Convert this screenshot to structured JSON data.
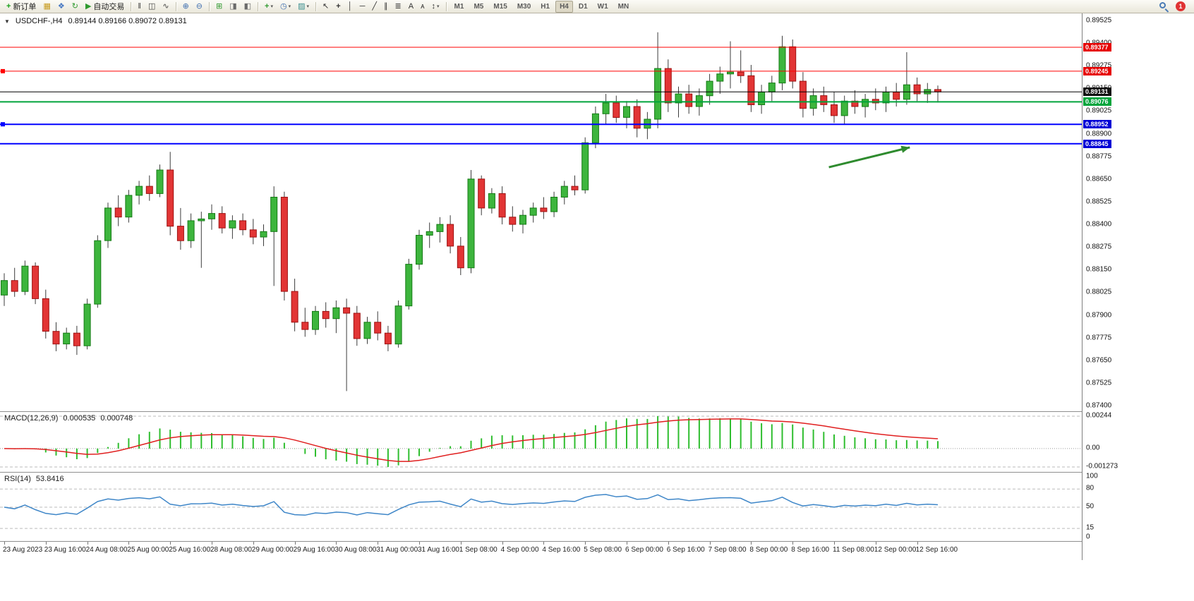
{
  "toolbar": {
    "caret_glyph": "▾",
    "notification_count": "1",
    "groups": [
      {
        "buttons": [
          {
            "name": "new-order-button",
            "glyph": "+",
            "glyph_color": "#18a018",
            "bold": true,
            "label": "新订单"
          },
          {
            "name": "new-chart-button",
            "glyph": "▦",
            "glyph_color": "#c79a1d"
          },
          {
            "name": "profiles-button",
            "glyph": "❖",
            "glyph_color": "#4576c2"
          },
          {
            "name": "refresh-button",
            "glyph": "↻",
            "glyph_color": "#2f9a2f"
          },
          {
            "name": "auto-trading-button",
            "glyph": "▶",
            "glyph_color": "#2f9a2f",
            "label": "自动交易"
          }
        ]
      },
      {
        "buttons": [
          {
            "name": "bar-chart-button",
            "glyph": "‖",
            "glyph_color": "#444"
          },
          {
            "name": "candlestick-chart-button",
            "glyph": "◫",
            "glyph_color": "#444"
          },
          {
            "name": "line-chart-button",
            "glyph": "∿",
            "glyph_color": "#444"
          }
        ]
      },
      {
        "buttons": [
          {
            "name": "zoom-in-button",
            "glyph": "⊕",
            "glyph_color": "#3f6fb0"
          },
          {
            "name": "zoom-out-button",
            "glyph": "⊖",
            "glyph_color": "#3f6fb0"
          }
        ]
      },
      {
        "buttons": [
          {
            "name": "tile-windows-button",
            "glyph": "⊞",
            "glyph_color": "#2f9a2f"
          },
          {
            "name": "auto-scroll-button",
            "glyph": "◨",
            "glyph_color": "#6a6a6a"
          },
          {
            "name": "chart-shift-button",
            "glyph": "◧",
            "glyph_color": "#6a6a6a"
          }
        ]
      },
      {
        "buttons": [
          {
            "name": "indicators-button",
            "glyph": "+",
            "glyph_color": "#2f9a2f",
            "bold": true,
            "caret": true
          },
          {
            "name": "periods-button",
            "glyph": "◷",
            "glyph_color": "#3f6fb0",
            "caret": true
          },
          {
            "name": "templates-button",
            "glyph": "▨",
            "glyph_color": "#3a8f8f",
            "caret": true
          }
        ]
      },
      {
        "buttons": [
          {
            "name": "cursor-button",
            "glyph": "↖",
            "glyph_color": "#333"
          },
          {
            "name": "crosshair-button",
            "glyph": "+",
            "glyph_color": "#333",
            "bold": true
          },
          {
            "name": "vertical-line-button",
            "glyph": "│",
            "glyph_color": "#333"
          },
          {
            "name": "horizontal-line-button",
            "glyph": "─",
            "glyph_color": "#333"
          },
          {
            "name": "trendline-button",
            "glyph": "╱",
            "glyph_color": "#333"
          },
          {
            "name": "channel-button",
            "glyph": "∥",
            "glyph_color": "#333"
          },
          {
            "name": "fibonacci-button",
            "glyph": "≣",
            "glyph_color": "#333"
          },
          {
            "name": "text-button",
            "glyph": "A",
            "glyph_color": "#333"
          },
          {
            "name": "label-button",
            "glyph": "ᴀ",
            "glyph_color": "#333"
          },
          {
            "name": "arrows-button",
            "glyph": "↕",
            "glyph_color": "#333",
            "caret": true
          }
        ]
      },
      {
        "buttons": [
          {
            "name": "timeframe-m1-button",
            "text": "M1"
          },
          {
            "name": "timeframe-m5-button",
            "text": "M5"
          },
          {
            "name": "timeframe-m15-button",
            "text": "M15"
          },
          {
            "name": "timeframe-m30-button",
            "text": "M30"
          },
          {
            "name": "timeframe-h1-button",
            "text": "H1"
          },
          {
            "name": "timeframe-h4-button",
            "text": "H4",
            "pressed": true
          },
          {
            "name": "timeframe-d1-button",
            "text": "D1"
          },
          {
            "name": "timeframe-w1-button",
            "text": "W1"
          },
          {
            "name": "timeframe-mn-button",
            "text": "MN"
          }
        ]
      }
    ]
  },
  "chart": {
    "collapse_glyph": "▼",
    "symbol": "USDCHF-,H4",
    "ohlc": "0.89144 0.89166 0.89072 0.89131",
    "candle_colors": {
      "up_fill": "#3db53d",
      "up_stroke": "#157a15",
      "down_fill": "#e23535",
      "down_stroke": "#9e1212"
    },
    "wick_color": "#3c3c3c",
    "price_axis_ticks": [
      "0.89525",
      "0.89400",
      "0.89275",
      "0.89150",
      "0.89025",
      "0.88900",
      "0.88775",
      "0.88650",
      "0.88525",
      "0.88400",
      "0.88275",
      "0.88150",
      "0.88025",
      "0.87900",
      "0.87775",
      "0.87650",
      "0.87525",
      "0.87400"
    ],
    "overlay_lines": [
      {
        "name": "resistance-line-1",
        "price": 0.89377,
        "color": "#ff0000",
        "width": 1,
        "badge": "0.89377",
        "badge_bg": "#e60000"
      },
      {
        "name": "resistance-line-2",
        "price": 0.89245,
        "color": "#ff0000",
        "width": 1,
        "badge": "0.89245",
        "badge_bg": "#e60000",
        "left_marker": true
      },
      {
        "name": "bid-price-line",
        "price": 0.89131,
        "color": "#000000",
        "width": 1,
        "badge": "0.89131",
        "badge_bg": "#111111"
      },
      {
        "name": "support-line-green",
        "price": 0.89076,
        "color": "#00a43b",
        "width": 2,
        "badge": "0.89076",
        "badge_bg": "#00a43b"
      },
      {
        "name": "support-line-1",
        "price": 0.88952,
        "color": "#0000ff",
        "width": 2,
        "badge": "0.88952",
        "badge_bg": "#0000d6",
        "left_marker": true
      },
      {
        "name": "support-line-2",
        "price": 0.88845,
        "color": "#0000ff",
        "width": 2,
        "badge": "0.88845",
        "badge_bg": "#0000d6"
      }
    ],
    "arrow": {
      "from": [
        79.5,
        0.88715
      ],
      "to": [
        87.3,
        0.88825
      ],
      "color": "#2e8b2e"
    }
  },
  "chart_data": {
    "type": "candlestick",
    "symbol": "USDCHF",
    "timeframe": "H4",
    "price_min": 0.874,
    "price_max": 0.89525,
    "bars_per_label": 4,
    "time_labels": [
      "23 Aug 2023",
      "23 Aug 16:00",
      "24 Aug 08:00",
      "25 Aug 00:00",
      "25 Aug 16:00",
      "28 Aug 08:00",
      "29 Aug 00:00",
      "29 Aug 16:00",
      "30 Aug 08:00",
      "31 Aug 00:00",
      "31 Aug 16:00",
      "1 Sep 08:00",
      "4 Sep 00:00",
      "4 Sep 16:00",
      "5 Sep 08:00",
      "6 Sep 00:00",
      "6 Sep 16:00",
      "7 Sep 08:00",
      "8 Sep 00:00",
      "8 Sep 16:00",
      "11 Sep 08:00",
      "12 Sep 00:00",
      "12 Sep 16:00"
    ],
    "candles": [
      [
        0.8801,
        0.8813,
        0.8795,
        0.8809
      ],
      [
        0.8809,
        0.8816,
        0.88,
        0.8803
      ],
      [
        0.8803,
        0.882,
        0.8801,
        0.8817
      ],
      [
        0.8817,
        0.8819,
        0.8796,
        0.8799
      ],
      [
        0.8799,
        0.8804,
        0.8777,
        0.8781
      ],
      [
        0.8781,
        0.8786,
        0.877,
        0.8774
      ],
      [
        0.8774,
        0.8783,
        0.8771,
        0.878
      ],
      [
        0.878,
        0.8784,
        0.8768,
        0.8773
      ],
      [
        0.8773,
        0.8799,
        0.8771,
        0.8796
      ],
      [
        0.8796,
        0.8834,
        0.8794,
        0.8831
      ],
      [
        0.8831,
        0.8852,
        0.8827,
        0.8849
      ],
      [
        0.8849,
        0.8856,
        0.8839,
        0.8844
      ],
      [
        0.8844,
        0.8859,
        0.8841,
        0.8856
      ],
      [
        0.8856,
        0.8864,
        0.8851,
        0.8861
      ],
      [
        0.8861,
        0.8867,
        0.8853,
        0.8857
      ],
      [
        0.8857,
        0.8873,
        0.8855,
        0.887
      ],
      [
        0.887,
        0.888,
        0.8834,
        0.8839
      ],
      [
        0.8839,
        0.8849,
        0.8826,
        0.8831
      ],
      [
        0.8831,
        0.8846,
        0.8827,
        0.8842
      ],
      [
        0.8842,
        0.8847,
        0.8816,
        0.8843
      ],
      [
        0.8843,
        0.8851,
        0.8837,
        0.8846
      ],
      [
        0.8846,
        0.885,
        0.8835,
        0.8838
      ],
      [
        0.8838,
        0.8845,
        0.8832,
        0.8842
      ],
      [
        0.8842,
        0.8846,
        0.8834,
        0.8837
      ],
      [
        0.8837,
        0.8843,
        0.8829,
        0.8833
      ],
      [
        0.8833,
        0.884,
        0.8828,
        0.8836
      ],
      [
        0.8836,
        0.8861,
        0.8806,
        0.8855
      ],
      [
        0.8855,
        0.8858,
        0.8798,
        0.8803
      ],
      [
        0.8803,
        0.881,
        0.8781,
        0.8786
      ],
      [
        0.8786,
        0.8794,
        0.8778,
        0.8782
      ],
      [
        0.8782,
        0.8795,
        0.8779,
        0.8792
      ],
      [
        0.8792,
        0.8797,
        0.8783,
        0.8788
      ],
      [
        0.8788,
        0.8798,
        0.878,
        0.8794
      ],
      [
        0.8794,
        0.8799,
        0.8748,
        0.8791
      ],
      [
        0.8791,
        0.8795,
        0.8773,
        0.8777
      ],
      [
        0.8777,
        0.8789,
        0.8774,
        0.8786
      ],
      [
        0.8786,
        0.8792,
        0.8776,
        0.878
      ],
      [
        0.878,
        0.8784,
        0.877,
        0.8774
      ],
      [
        0.8774,
        0.8798,
        0.8772,
        0.8795
      ],
      [
        0.8795,
        0.8821,
        0.8793,
        0.8818
      ],
      [
        0.8818,
        0.8837,
        0.8815,
        0.8834
      ],
      [
        0.8834,
        0.8841,
        0.8827,
        0.8836
      ],
      [
        0.8836,
        0.8844,
        0.883,
        0.884
      ],
      [
        0.884,
        0.8845,
        0.8824,
        0.8828
      ],
      [
        0.8828,
        0.8833,
        0.8812,
        0.8816
      ],
      [
        0.8816,
        0.887,
        0.8813,
        0.8865
      ],
      [
        0.8865,
        0.8867,
        0.8845,
        0.8849
      ],
      [
        0.8849,
        0.886,
        0.8846,
        0.8857
      ],
      [
        0.8857,
        0.8861,
        0.884,
        0.8844
      ],
      [
        0.8844,
        0.885,
        0.8836,
        0.884
      ],
      [
        0.884,
        0.8848,
        0.8835,
        0.8845
      ],
      [
        0.8845,
        0.8852,
        0.8841,
        0.8849
      ],
      [
        0.8849,
        0.8855,
        0.8843,
        0.8847
      ],
      [
        0.8847,
        0.8858,
        0.8844,
        0.8855
      ],
      [
        0.8855,
        0.8864,
        0.8851,
        0.8861
      ],
      [
        0.8861,
        0.8867,
        0.8856,
        0.8859
      ],
      [
        0.8859,
        0.8888,
        0.8857,
        0.8885
      ],
      [
        0.8885,
        0.8905,
        0.8882,
        0.8901
      ],
      [
        0.8901,
        0.8912,
        0.8895,
        0.8907
      ],
      [
        0.8907,
        0.8911,
        0.8896,
        0.8899
      ],
      [
        0.8899,
        0.8908,
        0.8893,
        0.8905
      ],
      [
        0.8905,
        0.8909,
        0.8888,
        0.8893
      ],
      [
        0.8893,
        0.8902,
        0.8887,
        0.8898
      ],
      [
        0.8898,
        0.8946,
        0.8893,
        0.8926
      ],
      [
        0.8926,
        0.8931,
        0.8902,
        0.8907
      ],
      [
        0.8907,
        0.8916,
        0.8899,
        0.8912
      ],
      [
        0.8912,
        0.8917,
        0.8901,
        0.8905
      ],
      [
        0.8905,
        0.8915,
        0.89,
        0.8911
      ],
      [
        0.8911,
        0.8923,
        0.8906,
        0.8919
      ],
      [
        0.8919,
        0.8927,
        0.8912,
        0.8923
      ],
      [
        0.8923,
        0.8941,
        0.8915,
        0.8924
      ],
      [
        0.8924,
        0.8936,
        0.8918,
        0.8922
      ],
      [
        0.8922,
        0.8928,
        0.8902,
        0.8906
      ],
      [
        0.8906,
        0.8917,
        0.8901,
        0.8913
      ],
      [
        0.8913,
        0.8922,
        0.8908,
        0.8918
      ],
      [
        0.8918,
        0.8944,
        0.8914,
        0.8938
      ],
      [
        0.8938,
        0.8942,
        0.8915,
        0.8919
      ],
      [
        0.8919,
        0.8924,
        0.8899,
        0.8904
      ],
      [
        0.8904,
        0.8915,
        0.89,
        0.8911
      ],
      [
        0.8911,
        0.8916,
        0.8902,
        0.8906
      ],
      [
        0.8906,
        0.8913,
        0.8896,
        0.89
      ],
      [
        0.89,
        0.8911,
        0.8895,
        0.8908
      ],
      [
        0.8908,
        0.8914,
        0.8901,
        0.8905
      ],
      [
        0.8905,
        0.8912,
        0.8899,
        0.8909
      ],
      [
        0.8909,
        0.8915,
        0.8903,
        0.8907
      ],
      [
        0.8907,
        0.8916,
        0.8902,
        0.8913
      ],
      [
        0.8913,
        0.8918,
        0.8905,
        0.8909
      ],
      [
        0.8909,
        0.8935,
        0.8906,
        0.8917
      ],
      [
        0.8917,
        0.8921,
        0.8908,
        0.8912
      ],
      [
        0.8912,
        0.8918,
        0.8907,
        0.89144
      ],
      [
        0.89144,
        0.89166,
        0.89072,
        0.89131
      ]
    ]
  },
  "macd": {
    "label": "MACD(12,26,9)",
    "value_main": "0.000535",
    "value_signal": "0.000748",
    "axis": [
      "0.00244",
      "0.00",
      "-0.001273"
    ],
    "histogram_color": "#2fbe2f",
    "signal_color": "#e01f1f",
    "params": [
      12,
      26,
      9
    ]
  },
  "rsi": {
    "label": "RSI(14)",
    "value": "53.8416",
    "axis": [
      "100",
      "80",
      "50",
      "15",
      "0"
    ],
    "levels": [
      80,
      50,
      15
    ],
    "line_color": "#3e86c8",
    "period": 14
  }
}
